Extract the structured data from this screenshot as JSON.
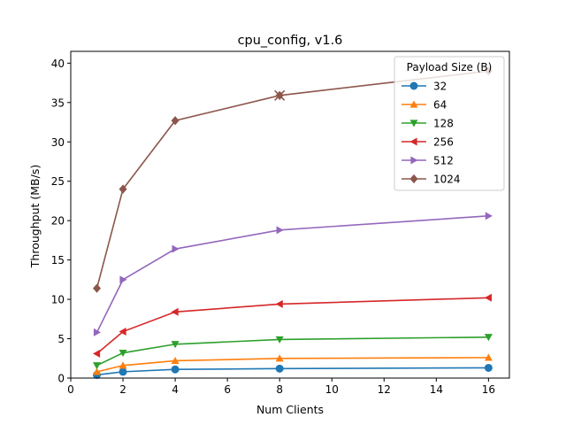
{
  "chart_data": {
    "type": "line",
    "title": "cpu_config, v1.6",
    "xlabel": "Num Clients",
    "ylabel": "Throughput (MB/s)",
    "xlim": [
      0,
      16.8
    ],
    "ylim": [
      0,
      41.5
    ],
    "xticks": [
      0,
      2,
      4,
      6,
      8,
      10,
      12,
      14,
      16
    ],
    "yticks": [
      0,
      5,
      10,
      15,
      20,
      25,
      30,
      35,
      40
    ],
    "grid": false,
    "legend": {
      "title": "Payload Size (B)",
      "placement": "top-right"
    },
    "x": [
      1,
      2,
      4,
      8,
      16
    ],
    "series": [
      {
        "name": "32",
        "marker": "circle",
        "color": "#1f77b4",
        "values": [
          0.4,
          0.8,
          1.1,
          1.2,
          1.3
        ]
      },
      {
        "name": "64",
        "marker": "triangle-up",
        "color": "#ff7f0e",
        "values": [
          0.8,
          1.6,
          2.2,
          2.5,
          2.6
        ]
      },
      {
        "name": "128",
        "marker": "triangle-down",
        "color": "#2ca02c",
        "values": [
          1.6,
          3.2,
          4.3,
          4.9,
          5.2
        ]
      },
      {
        "name": "256",
        "marker": "triangle-left",
        "color": "#d62728",
        "values": [
          3.1,
          5.9,
          8.4,
          9.4,
          10.2
        ]
      },
      {
        "name": "512",
        "marker": "triangle-right",
        "color": "#9467bd",
        "values": [
          5.8,
          12.5,
          16.4,
          18.8,
          20.6
        ]
      },
      {
        "name": "1024",
        "marker": "diamond",
        "color": "#8c564b",
        "values": [
          11.4,
          24.0,
          32.7,
          35.9,
          39.0
        ]
      }
    ],
    "annotations": [
      {
        "type": "x-marker",
        "series": "1024",
        "x": 8,
        "y": 35.9
      }
    ]
  }
}
